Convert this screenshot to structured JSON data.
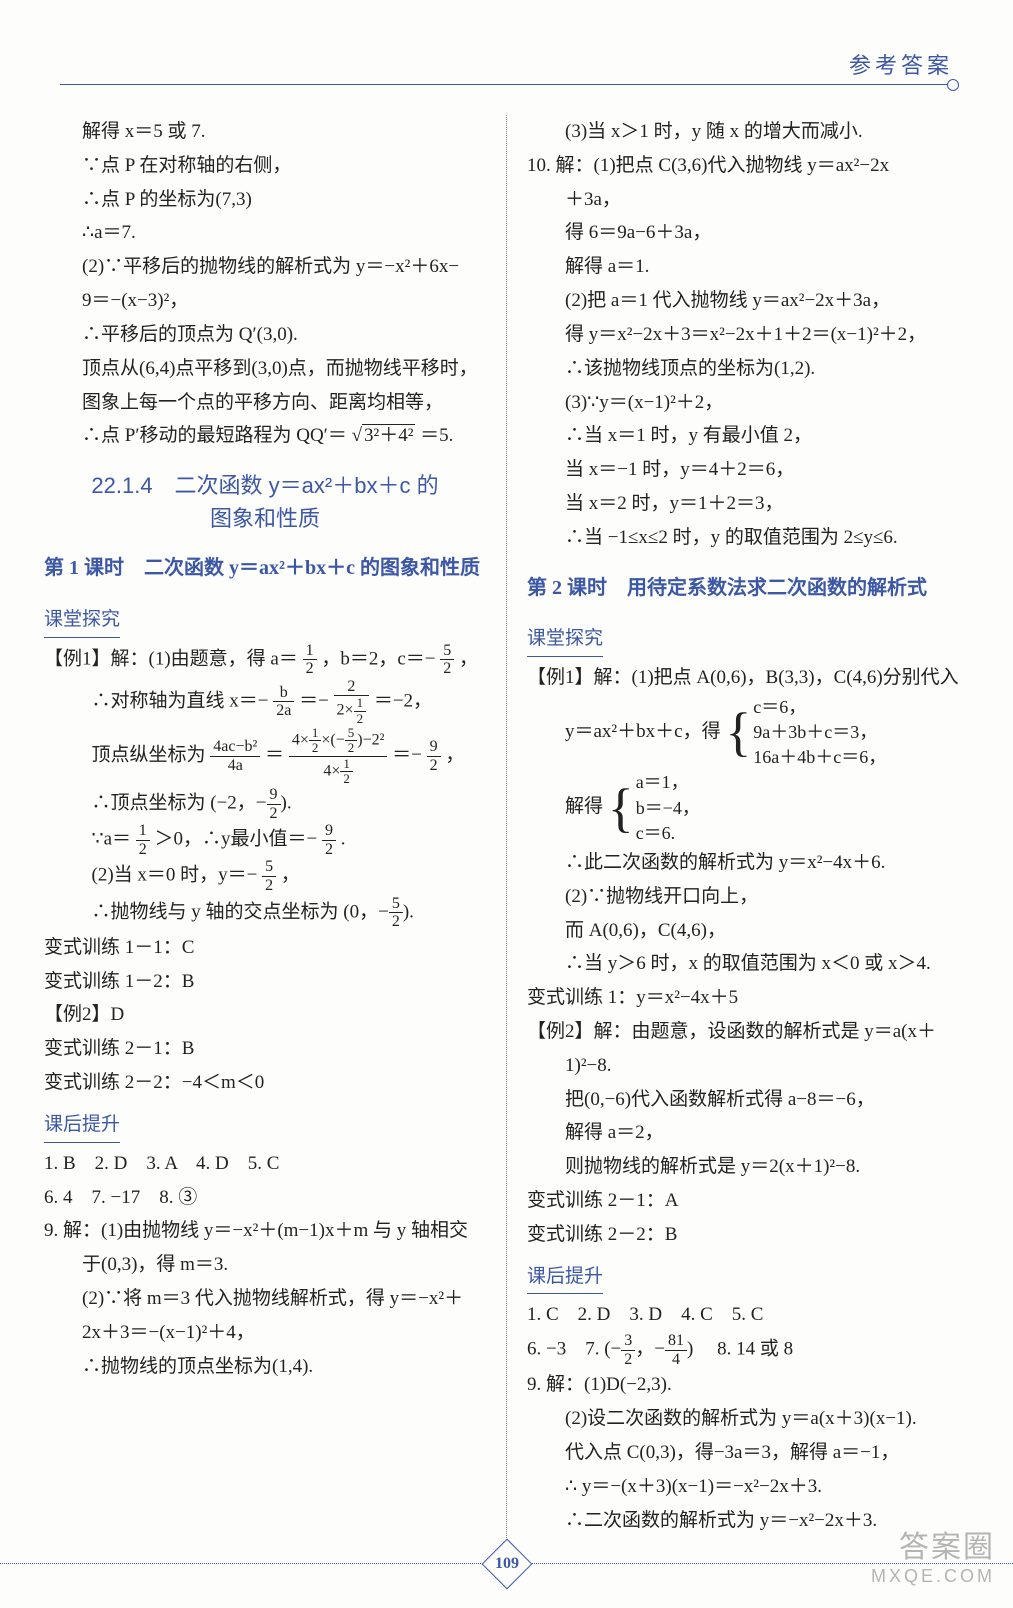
{
  "header": {
    "title": "参考答案"
  },
  "colors": {
    "accent": "#3b57a6",
    "text": "#222222",
    "bg": "#fdfdfb"
  },
  "pageNumber": "109",
  "watermark": {
    "line1": "答案圈",
    "line2": "MXQE.COM"
  },
  "left": {
    "l1": "解得 x＝5 或 7.",
    "l2": "∵点 P 在对称轴的右侧，",
    "l3": "∴点 P 的坐标为(7,3)",
    "l4": "∴a＝7.",
    "l5": "(2)∵平移后的抛物线的解析式为 y＝−x²＋6x−",
    "l6": "9＝−(x−3)²，",
    "l7": "∴平移后的顶点为 Q′(3,0).",
    "l8": "顶点从(6,4)点平移到(3,0)点，而抛物线平移时，",
    "l9": "图象上每一个点的平移方向、距离均相等，",
    "l10a": "∴点 P′移动的最短路程为 QQ′＝",
    "l10r": "3²＋4²",
    "l10b": "＝5.",
    "section1a": "22.1.4　二次函数 y＝ax²＋bx＋c 的",
    "section1b": "图象和性质",
    "lesson1": "第 1 课时　二次函数 y＝ax²＋bx＋c 的图象和性质",
    "sub_tan": "课堂探究",
    "ex1a": "【例1】解：(1)由题意，得 a＝",
    "ex1b": "，b＝2，c＝−",
    "ex1c": "，",
    "sym_a": "∴对称轴为直线 x＝−",
    "sym_eq1": "＝−",
    "sym_eq2": "＝−2，",
    "vert_a": "顶点纵坐标为",
    "vert_eq": "＝",
    "vert_b": "＝−",
    "vert_c": "，",
    "vcoord": "∴顶点坐标为",
    "amin_a": "∵a＝",
    "amin_b": "＞0，∴y最小值＝−",
    "amin_c": ".",
    "p2a": "(2)当 x＝0 时，y＝−",
    "p2b": "，",
    "yint_a": "∴抛物线与 y 轴的交点坐标为",
    "v11": "变式训练 1－1：C",
    "v12": "变式训练 1－2：B",
    "ex2": "【例2】D",
    "v21": "变式训练 2－1：B",
    "v22": "变式训练 2－2：−4＜m＜0",
    "sub_hou": "课后提升",
    "mc1": "1. B　2. D　3. A　4. D　5. C",
    "mc2": "6. 4　7. −17　8. ③",
    "q9a": "9. 解：(1)由抛物线 y＝−x²＋(m−1)x＋m 与 y 轴相交",
    "q9b": "于(0,3)，得 m＝3.",
    "q9c": "(2)∵将 m＝3 代入抛物线解析式，得 y＝−x²＋",
    "q9d": "2x＋3＝−(x−1)²＋4，",
    "q9e": "∴抛物线的顶点坐标为(1,4).",
    "frac": {
      "half_n": "1",
      "half_d": "2",
      "five2_n": "5",
      "five2_d": "2",
      "b2a_n": "b",
      "b2a_d": "2a",
      "two_n": "2",
      "two_d_a": "2×",
      "two_d_b_n": "1",
      "two_d_b_d": "2",
      "v1_n": "4ac−b²",
      "v1_d": "4a",
      "v2_top_a": "4×",
      "v2_top_b": "×",
      "v2_top_c": "−2²",
      "v2_bot_a": "4×",
      "nine2_n": "9",
      "nine2_d": "2"
    }
  },
  "right": {
    "l1": "(3)当 x＞1 时，y 随 x 的增大而减小.",
    "l2": "10. 解：(1)把点 C(3,6)代入抛物线 y＝ax²−2x",
    "l3": "＋3a，",
    "l4": "得 6＝9a−6＋3a，",
    "l5": "解得 a＝1.",
    "l6": "(2)把 a＝1 代入抛物线 y＝ax²−2x＋3a，",
    "l7": "得 y＝x²−2x＋3＝x²−2x＋1＋2＝(x−1)²＋2，",
    "l8": "∴该抛物线顶点的坐标为(1,2).",
    "l9": "(3)∵y＝(x−1)²＋2，",
    "l10": "∴当 x＝1 时，y 有最小值 2，",
    "l11": "当 x＝−1 时，y＝4＋2＝6，",
    "l12": "当 x＝2 时，y＝1＋2＝3，",
    "l13": "∴当 −1≤x≤2 时，y 的取值范围为 2≤y≤6.",
    "lesson2": "第 2 课时　用待定系数法求二次函数的解析式",
    "sub_tan": "课堂探究",
    "ex1a": "【例1】解：(1)把点 A(0,6)，B(3,3)，C(4,6)分别代入",
    "sys_pre": "y＝ax²＋bx＋c，得",
    "sys1_a": "c＝6，",
    "sys1_b": "9a＋3b＋c＝3，",
    "sys1_c": "16a＋4b＋c＝6，",
    "sol_pre": "解得",
    "sol_a": "a＝1，",
    "sol_b": "b＝−4，",
    "sol_c": "c＝6.",
    "ex1res": "∴此二次函数的解析式为 y＝x²−4x＋6.",
    "ex1p2a": "(2)∵抛物线开口向上，",
    "ex1p2b": "而 A(0,6)，C(4,6)，",
    "ex1p2c": "∴当 y＞6 时，x 的取值范围为 x＜0 或 x＞4.",
    "v1": "变式训练 1：y＝x²−4x＋5",
    "ex2a": "【例2】解：由题意，设函数的解析式是 y＝a(x＋",
    "ex2b": "1)²−8.",
    "ex2c": "把(0,−6)代入函数解析式得 a−8＝−6，",
    "ex2d": "解得 a＝2，",
    "ex2e": "则抛物线的解析式是 y＝2(x＋1)²−8.",
    "v21": "变式训练 2－1：A",
    "v22": "变式训练 2－2：B",
    "sub_hou": "课后提升",
    "mc1": "1. C　2. D　3. D　4. C　5. C",
    "mc2a": "6. −3　7.",
    "pair_a": "3",
    "pair_b": "2",
    "pair_c": "81",
    "pair_d": "4",
    "mc2b": "　8. 14 或 8",
    "q9a": "9. 解：(1)D(−2,3).",
    "q9b": "(2)设二次函数的解析式为 y＝a(x＋3)(x−1).",
    "q9c": "代入点 C(0,3)，得−3a＝3，解得 a＝−1，",
    "q9d": "∴ y＝−(x＋3)(x−1)＝−x²−2x＋3.",
    "q9e": "∴二次函数的解析式为 y＝−x²−2x＋3."
  }
}
